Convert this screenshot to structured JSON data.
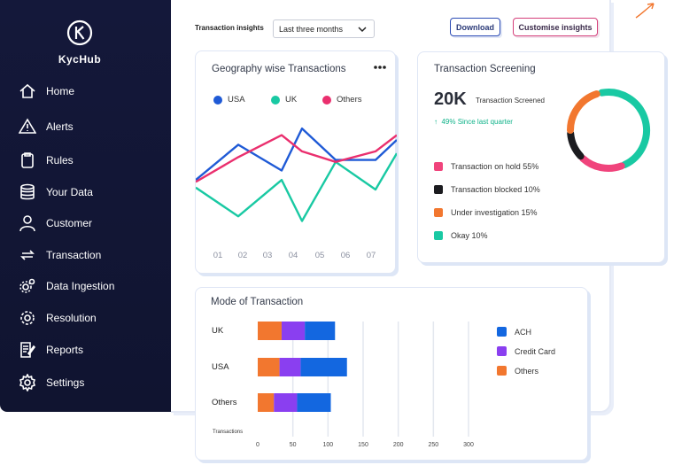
{
  "brand": {
    "name": "KycHub"
  },
  "sidebar": {
    "items": [
      {
        "label": "Home",
        "icon": "home-icon"
      },
      {
        "label": "Alerts",
        "icon": "alert-icon"
      },
      {
        "label": "Rules",
        "icon": "clipboard-icon"
      },
      {
        "label": "Your Data",
        "icon": "database-icon"
      },
      {
        "label": "Customer",
        "icon": "user-icon"
      },
      {
        "label": "Transaction",
        "icon": "transfer-icon"
      },
      {
        "label": "Data Ingestion",
        "icon": "gears-icon"
      },
      {
        "label": "Resolution",
        "icon": "gear-icon"
      },
      {
        "label": "Reports",
        "icon": "report-icon"
      },
      {
        "label": "Settings",
        "icon": "settings-icon"
      }
    ]
  },
  "toolbar": {
    "title": "Transaction insights",
    "period": "Last three months",
    "download_label": "Download",
    "customise_label": "Customise insights"
  },
  "geography": {
    "title": "Geography wise Transactions",
    "legend": [
      "USA",
      "UK",
      "Others"
    ],
    "colors": {
      "USA": "#1f5ad6",
      "UK": "#19c9a3",
      "Others": "#ea2f6e"
    }
  },
  "screening": {
    "title": "Transaction Screening",
    "total": "20K",
    "total_label": "Transaction Screened",
    "growth": "49% Since last quarter",
    "legend": [
      {
        "label": "Transaction on hold 55%",
        "color": "#f0447c"
      },
      {
        "label": "Transaction blocked 10%",
        "color": "#1b1b1f"
      },
      {
        "label": "Under investigation 15%",
        "color": "#f2772f"
      },
      {
        "label": "Okay 10%",
        "color": "#19c9a3"
      }
    ]
  },
  "mode": {
    "title": "Mode of Transaction",
    "legend": [
      {
        "label": "ACH",
        "color": "#1367e0"
      },
      {
        "label": "Credit Card",
        "color": "#8a3ff0"
      },
      {
        "label": "Others",
        "color": "#f2772f"
      }
    ]
  },
  "chart_data": [
    {
      "type": "line",
      "title": "Geography wise Transactions",
      "categories": [
        "01",
        "02",
        "03",
        "04",
        "05",
        "06",
        "07"
      ],
      "series": [
        {
          "name": "USA",
          "color": "#1f5ad6",
          "values": [
            2.2,
            5.9,
            3.2,
            7.6,
            4.3,
            4.3,
            6.4
          ]
        },
        {
          "name": "UK",
          "color": "#19c9a3",
          "values": [
            1.4,
            -1.6,
            2.2,
            -2.1,
            4.1,
            1.2,
            5.0
          ]
        },
        {
          "name": "Others",
          "color": "#ea2f6e",
          "values": [
            2.0,
            4.6,
            6.9,
            5.2,
            4.1,
            5.2,
            6.9
          ]
        }
      ]
    },
    {
      "type": "pie",
      "title": "Transaction Screening",
      "labels": [
        "Transaction on hold",
        "Transaction blocked",
        "Under investigation",
        "Okay"
      ],
      "values": [
        55,
        10,
        15,
        10
      ]
    },
    {
      "type": "bar",
      "title": "Mode of Transaction",
      "orientation": "horizontal",
      "stacked": true,
      "categories": [
        "UK",
        "USA",
        "Others"
      ],
      "xlabel": "Transactions",
      "xlim": [
        0,
        300
      ],
      "xticks": [
        0,
        50,
        100,
        150,
        200,
        250,
        300
      ],
      "series": [
        {
          "name": "Others",
          "color": "#f2772f",
          "values": [
            34,
            31,
            23
          ]
        },
        {
          "name": "Credit Card",
          "color": "#8a3ff0",
          "values": [
            33,
            30,
            33
          ]
        },
        {
          "name": "ACH",
          "color": "#1367e0",
          "values": [
            43,
            66,
            48
          ]
        }
      ]
    }
  ]
}
